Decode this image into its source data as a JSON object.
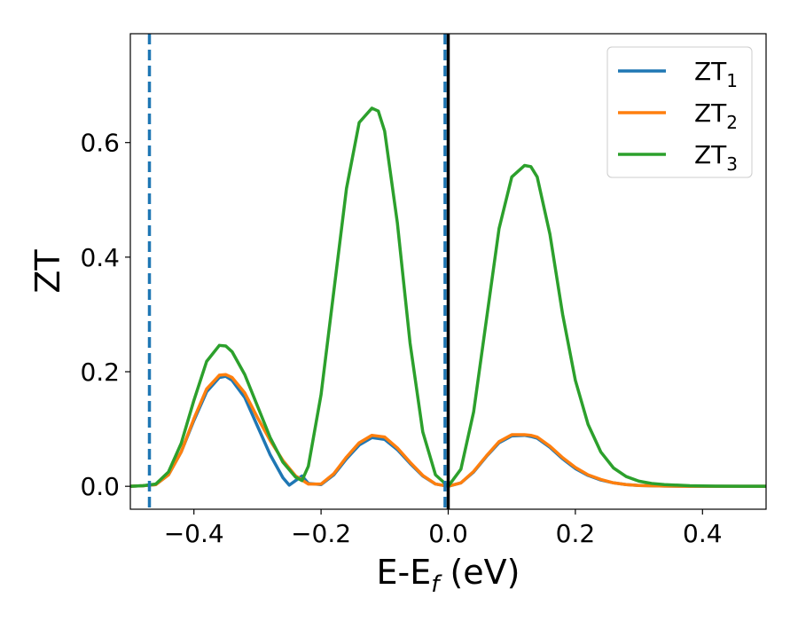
{
  "chart_data": {
    "type": "line",
    "xlabel": {
      "main": "E-E",
      "sub": "f",
      "tail": " (eV)"
    },
    "ylabel": "ZT",
    "xlim": [
      -0.5,
      0.5
    ],
    "ylim": [
      -0.04,
      0.79
    ],
    "xticks": [
      {
        "value": -0.4,
        "label": "−0.4"
      },
      {
        "value": -0.2,
        "label": "−0.2"
      },
      {
        "value": 0.0,
        "label": "0.0"
      },
      {
        "value": 0.2,
        "label": "0.2"
      },
      {
        "value": 0.4,
        "label": "0.4"
      }
    ],
    "yticks": [
      {
        "value": 0.0,
        "label": "0.0"
      },
      {
        "value": 0.2,
        "label": "0.2"
      },
      {
        "value": 0.4,
        "label": "0.4"
      },
      {
        "value": 0.6,
        "label": "0.6"
      }
    ],
    "grid": false,
    "legend_position": "top-right",
    "series": [
      {
        "name": "ZT",
        "sub": "1",
        "color": "#1f77b4",
        "x": [
          -0.5,
          -0.48,
          -0.46,
          -0.44,
          -0.42,
          -0.4,
          -0.38,
          -0.36,
          -0.35,
          -0.34,
          -0.32,
          -0.3,
          -0.28,
          -0.26,
          -0.25,
          -0.24,
          -0.23,
          -0.22,
          -0.2,
          -0.18,
          -0.16,
          -0.14,
          -0.12,
          -0.1,
          -0.08,
          -0.06,
          -0.04,
          -0.02,
          0.0,
          0.02,
          0.04,
          0.06,
          0.08,
          0.1,
          0.12,
          0.13,
          0.14,
          0.16,
          0.18,
          0.2,
          0.22,
          0.24,
          0.26,
          0.28,
          0.3,
          0.34,
          0.38,
          0.42,
          0.46,
          0.5
        ],
        "y": [
          0.0,
          0.001,
          0.003,
          0.02,
          0.06,
          0.115,
          0.165,
          0.19,
          0.192,
          0.185,
          0.155,
          0.105,
          0.055,
          0.015,
          0.002,
          0.01,
          0.018,
          0.005,
          0.003,
          0.02,
          0.048,
          0.072,
          0.085,
          0.082,
          0.064,
          0.04,
          0.018,
          0.004,
          0.0,
          0.006,
          0.025,
          0.052,
          0.076,
          0.088,
          0.089,
          0.087,
          0.084,
          0.068,
          0.048,
          0.031,
          0.019,
          0.011,
          0.006,
          0.003,
          0.0015,
          0.0004,
          0.0001,
          0.0,
          0.0,
          0.0
        ]
      },
      {
        "name": "ZT",
        "sub": "2",
        "color": "#ff7f0e",
        "x": [
          -0.5,
          -0.48,
          -0.46,
          -0.44,
          -0.42,
          -0.4,
          -0.38,
          -0.36,
          -0.35,
          -0.34,
          -0.32,
          -0.3,
          -0.28,
          -0.26,
          -0.24,
          -0.22,
          -0.2,
          -0.18,
          -0.16,
          -0.14,
          -0.12,
          -0.1,
          -0.08,
          -0.06,
          -0.04,
          -0.02,
          0.0,
          0.02,
          0.04,
          0.06,
          0.08,
          0.1,
          0.12,
          0.13,
          0.14,
          0.16,
          0.18,
          0.2,
          0.22,
          0.24,
          0.26,
          0.28,
          0.3,
          0.34,
          0.38,
          0.42,
          0.46,
          0.5
        ],
        "y": [
          0.0,
          0.001,
          0.003,
          0.02,
          0.06,
          0.118,
          0.17,
          0.194,
          0.195,
          0.19,
          0.163,
          0.12,
          0.08,
          0.045,
          0.018,
          0.004,
          0.004,
          0.022,
          0.051,
          0.076,
          0.089,
          0.086,
          0.067,
          0.042,
          0.019,
          0.004,
          0.0,
          0.006,
          0.026,
          0.053,
          0.078,
          0.09,
          0.09,
          0.089,
          0.086,
          0.07,
          0.05,
          0.033,
          0.02,
          0.012,
          0.006,
          0.003,
          0.0015,
          0.0004,
          0.0001,
          0.0,
          0.0,
          0.0
        ]
      },
      {
        "name": "ZT",
        "sub": "3",
        "color": "#2ca02c",
        "x": [
          -0.5,
          -0.48,
          -0.46,
          -0.44,
          -0.42,
          -0.4,
          -0.38,
          -0.36,
          -0.35,
          -0.34,
          -0.32,
          -0.3,
          -0.28,
          -0.26,
          -0.24,
          -0.23,
          -0.22,
          -0.2,
          -0.18,
          -0.16,
          -0.14,
          -0.12,
          -0.11,
          -0.1,
          -0.08,
          -0.06,
          -0.04,
          -0.02,
          0.0,
          0.02,
          0.04,
          0.06,
          0.08,
          0.1,
          0.12,
          0.13,
          0.14,
          0.16,
          0.18,
          0.2,
          0.22,
          0.24,
          0.26,
          0.28,
          0.3,
          0.32,
          0.34,
          0.38,
          0.42,
          0.46,
          0.5
        ],
        "y": [
          0.0,
          0.001,
          0.004,
          0.025,
          0.075,
          0.15,
          0.218,
          0.246,
          0.245,
          0.235,
          0.195,
          0.14,
          0.085,
          0.042,
          0.016,
          0.01,
          0.035,
          0.16,
          0.34,
          0.52,
          0.635,
          0.66,
          0.655,
          0.62,
          0.46,
          0.25,
          0.095,
          0.02,
          0.0,
          0.03,
          0.13,
          0.29,
          0.45,
          0.54,
          0.56,
          0.558,
          0.54,
          0.44,
          0.3,
          0.185,
          0.108,
          0.06,
          0.032,
          0.017,
          0.009,
          0.005,
          0.003,
          0.001,
          0.0003,
          0.0001,
          0.0
        ]
      }
    ],
    "vlines": [
      {
        "x": -0.47,
        "style": "dashed",
        "color": "#1f77b4"
      },
      {
        "x": -0.005,
        "style": "dashed",
        "color": "#1f77b4"
      },
      {
        "x": 0.0,
        "style": "solid",
        "color": "#000000"
      }
    ]
  }
}
